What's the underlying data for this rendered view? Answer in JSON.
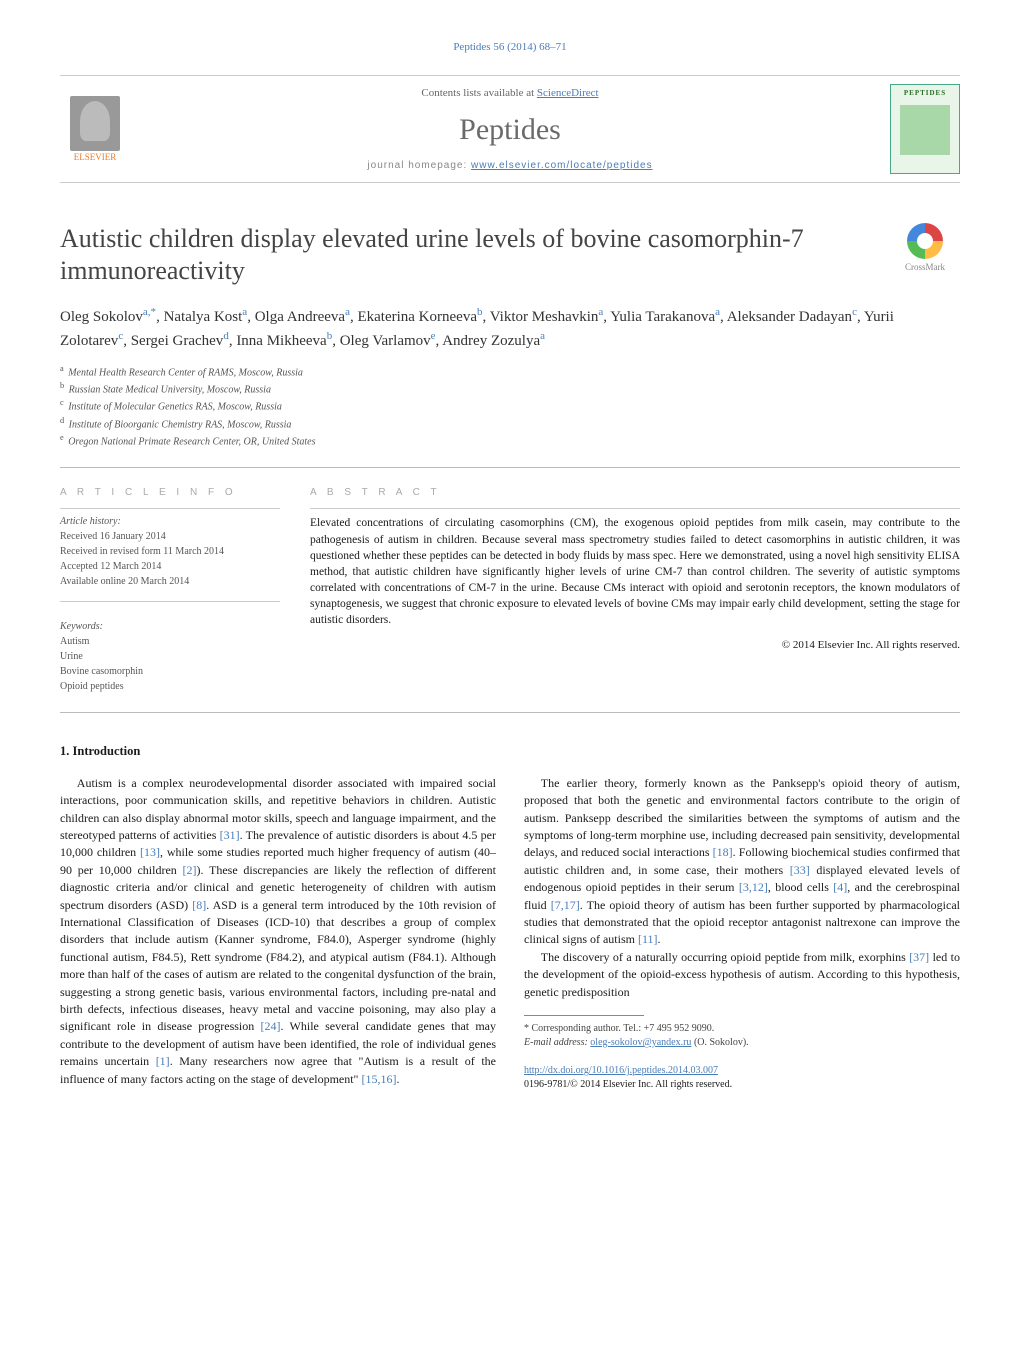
{
  "top_citation": "Peptides 56 (2014) 68–71",
  "header": {
    "contents_prefix": "Contents lists available at ",
    "contents_link": "ScienceDirect",
    "journal": "Peptides",
    "homepage_prefix": "journal homepage: ",
    "homepage_url": "www.elsevier.com/locate/peptides",
    "publisher_name": "ELSEVIER",
    "cover_title": "PEPTIDES"
  },
  "crossmark_label": "CrossMark",
  "title": "Autistic children display elevated urine levels of bovine casomorphin-7 immunoreactivity",
  "authors_html": "Oleg Sokolov<sup>a,*</sup>, Natalya Kost<sup>a</sup>, Olga Andreeva<sup>a</sup>, Ekaterina Korneeva<sup>b</sup>, Viktor Meshavkin<sup>a</sup>, Yulia Tarakanova<sup>a</sup>, Aleksander Dadayan<sup>c</sup>, Yurii Zolotarev<sup>c</sup>, Sergei Grachev<sup>d</sup>, Inna Mikheeva<sup>b</sup>, Oleg Varlamov<sup>e</sup>, Andrey Zozulya<sup>a</sup>",
  "affiliations": [
    {
      "sup": "a",
      "text": "Mental Health Research Center of RAMS, Moscow, Russia"
    },
    {
      "sup": "b",
      "text": "Russian State Medical University, Moscow, Russia"
    },
    {
      "sup": "c",
      "text": "Institute of Molecular Genetics RAS, Moscow, Russia"
    },
    {
      "sup": "d",
      "text": "Institute of Bioorganic Chemistry RAS, Moscow, Russia"
    },
    {
      "sup": "e",
      "text": "Oregon National Primate Research Center, OR, United States"
    }
  ],
  "info_heading": "A R T I C L E   I N F O",
  "abstract_heading": "A B S T R A C T",
  "history": {
    "label": "Article history:",
    "lines": [
      "Received 16 January 2014",
      "Received in revised form 11 March 2014",
      "Accepted 12 March 2014",
      "Available online 20 March 2014"
    ]
  },
  "keywords": {
    "label": "Keywords:",
    "items": [
      "Autism",
      "Urine",
      "Bovine casomorphin",
      "Opioid peptides"
    ]
  },
  "abstract": "Elevated concentrations of circulating casomorphins (CM), the exogenous opioid peptides from milk casein, may contribute to the pathogenesis of autism in children. Because several mass spectrometry studies failed to detect casomorphins in autistic children, it was questioned whether these peptides can be detected in body fluids by mass spec. Here we demonstrated, using a novel high sensitivity ELISA method, that autistic children have significantly higher levels of urine CM-7 than control children. The severity of autistic symptoms correlated with concentrations of CM-7 in the urine. Because CMs interact with opioid and serotonin receptors, the known modulators of synaptogenesis, we suggest that chronic exposure to elevated levels of bovine CMs may impair early child development, setting the stage for autistic disorders.",
  "copyright": "© 2014 Elsevier Inc. All rights reserved.",
  "section1_heading": "1. Introduction",
  "body": {
    "p1": "Autism is a complex neurodevelopmental disorder associated with impaired social interactions, poor communication skills, and repetitive behaviors in children. Autistic children can also display abnormal motor skills, speech and language impairment, and the stereotyped patterns of activities [31]. The prevalence of autistic disorders is about 4.5 per 10,000 children [13], while some studies reported much higher frequency of autism (40–90 per 10,000 children [2]). These discrepancies are likely the reflection of different diagnostic criteria and/or clinical and genetic heterogeneity of children with autism spectrum disorders (ASD) [8]. ASD is a general term introduced by the 10th revision of International Classification of Diseases (ICD-10) that describes a group of complex disorders that include autism (Kanner syndrome, F84.0), Asperger syndrome (highly functional autism, F84.5), Rett syndrome (F84.2), and atypical autism (F84.1). Although more than half of the cases of autism are related to the congenital dysfunction of the brain, suggesting a strong genetic basis, various environmental factors, including pre-natal and birth defects, infectious diseases, heavy metal and vaccine poisoning, may also play a significant role in disease progression [24]. While several candidate genes that may contribute to the development of autism have been identified, the role of individual genes remains uncertain [1]. Many researchers now agree that \"Autism is a result of the influence of many factors acting on the stage of development\" [15,16].",
    "p2": "The earlier theory, formerly known as the Panksepp's opioid theory of autism, proposed that both the genetic and environmental factors contribute to the origin of autism. Panksepp described the similarities between the symptoms of autism and the symptoms of long-term morphine use, including decreased pain sensitivity, developmental delays, and reduced social interactions [18]. Following biochemical studies confirmed that autistic children and, in some case, their mothers [33] displayed elevated levels of endogenous opioid peptides in their serum [3,12], blood cells [4], and the cerebrospinal fluid [7,17]. The opioid theory of autism has been further supported by pharmacological studies that demonstrated that the opioid receptor antagonist naltrexone can improve the clinical signs of autism [11].",
    "p3": "The discovery of a naturally occurring opioid peptide from milk, exorphins [37] led to the development of the opioid-excess hypothesis of autism. According to this hypothesis, genetic predisposition"
  },
  "footnotes": {
    "corr": "* Corresponding author. Tel.: +7 495 952 9090.",
    "email_label": "E-mail address: ",
    "email": "oleg-sokolov@yandex.ru",
    "email_tail": " (O. Sokolov)."
  },
  "doi": {
    "url": "http://dx.doi.org/10.1016/j.peptides.2014.03.007",
    "issn_line": "0196-9781/© 2014 Elsevier Inc. All rights reserved."
  },
  "colors": {
    "link": "#4a7db8",
    "text": "#1a1a1a",
    "muted": "#888888",
    "elsevier": "#e87d2a"
  }
}
